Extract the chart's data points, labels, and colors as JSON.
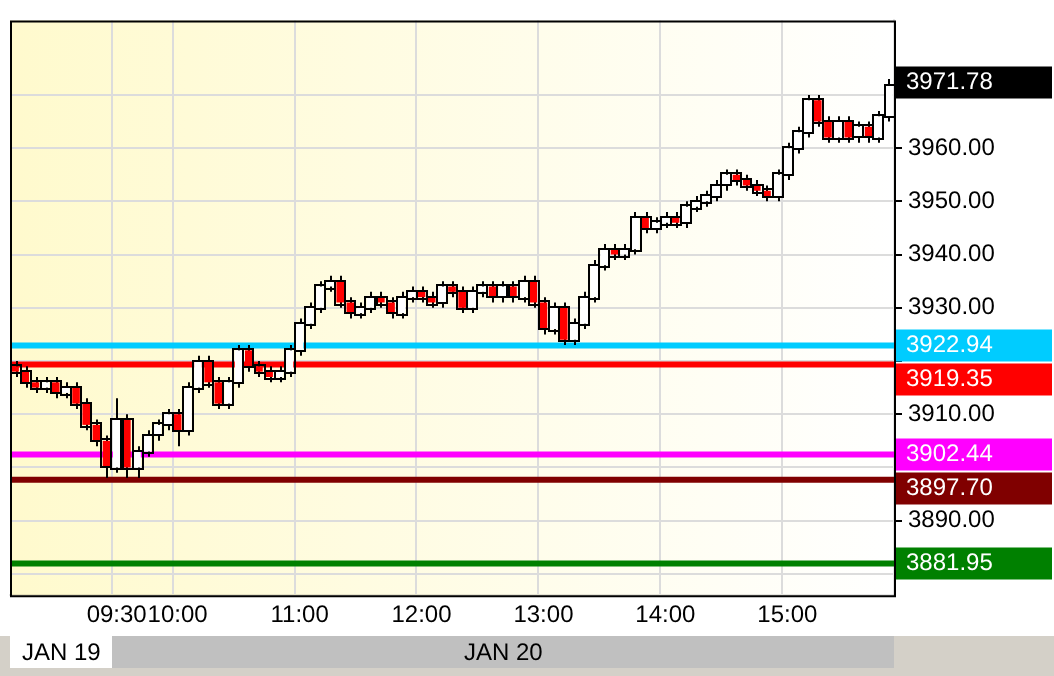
{
  "chart_data": {
    "type": "candlestick",
    "categories": [
      null,
      null,
      null,
      null,
      null,
      null,
      null,
      null,
      null,
      null,
      "09:30",
      null,
      null,
      null,
      null,
      null,
      "10:00",
      null,
      null,
      null,
      null,
      null,
      null,
      null,
      null,
      null,
      null,
      null,
      "11:00",
      null,
      null,
      null,
      null,
      null,
      null,
      null,
      null,
      null,
      null,
      null,
      "12:00",
      null,
      null,
      null,
      null,
      null,
      null,
      null,
      null,
      null,
      null,
      null,
      "13:00",
      null,
      null,
      null,
      null,
      null,
      null,
      null,
      null,
      null,
      null,
      null,
      "14:00",
      null,
      null,
      null,
      null,
      null,
      null,
      null,
      null,
      null,
      null,
      null,
      "15:00",
      null,
      null,
      null,
      null,
      null,
      null,
      null,
      null,
      null,
      null
    ],
    "ohlc": [
      [
        3919,
        3920,
        3917,
        3918
      ],
      [
        3918,
        3919,
        3915,
        3916
      ],
      [
        3916,
        3917,
        3914,
        3915
      ],
      [
        3915,
        3917,
        3914,
        3916
      ],
      [
        3916,
        3917,
        3913,
        3914
      ],
      [
        3914,
        3916,
        3913,
        3915
      ],
      [
        3915,
        3916,
        3911,
        3912
      ],
      [
        3912,
        3913,
        3907,
        3908
      ],
      [
        3908,
        3909,
        3904,
        3905
      ],
      [
        3905,
        3906,
        3898,
        3900
      ],
      [
        3900,
        3913,
        3899,
        3909
      ],
      [
        3909,
        3910,
        3898,
        3900
      ],
      [
        3900,
        3904,
        3898,
        3903
      ],
      [
        3903,
        3907,
        3902,
        3906
      ],
      [
        3906,
        3909,
        3905,
        3908
      ],
      [
        3908,
        3911,
        3907,
        3910
      ],
      [
        3910,
        3911,
        3904,
        3907
      ],
      [
        3907,
        3916,
        3906,
        3915
      ],
      [
        3915,
        3921,
        3914,
        3920
      ],
      [
        3920,
        3921,
        3915,
        3916
      ],
      [
        3916,
        3917,
        3911,
        3912
      ],
      [
        3912,
        3917,
        3911,
        3916
      ],
      [
        3916,
        3923,
        3915,
        3922
      ],
      [
        3922,
        3923,
        3918,
        3919
      ],
      [
        3919,
        3920,
        3917,
        3918
      ],
      [
        3918,
        3919,
        3916,
        3917
      ],
      [
        3917,
        3919,
        3916,
        3918
      ],
      [
        3918,
        3923,
        3917,
        3922
      ],
      [
        3922,
        3928,
        3921,
        3927
      ],
      [
        3927,
        3931,
        3926,
        3930
      ],
      [
        3930,
        3935,
        3929,
        3934
      ],
      [
        3934,
        3936,
        3933,
        3935
      ],
      [
        3935,
        3936,
        3930,
        3931
      ],
      [
        3931,
        3932,
        3928,
        3929
      ],
      [
        3929,
        3931,
        3928,
        3930
      ],
      [
        3930,
        3933,
        3929,
        3932
      ],
      [
        3932,
        3933,
        3930,
        3931
      ],
      [
        3931,
        3932,
        3928,
        3929
      ],
      [
        3929,
        3933,
        3928,
        3932
      ],
      [
        3932,
        3934,
        3931,
        3933
      ],
      [
        3933,
        3934,
        3931,
        3932
      ],
      [
        3932,
        3933,
        3930,
        3931
      ],
      [
        3931,
        3935,
        3930,
        3934
      ],
      [
        3934,
        3935,
        3932,
        3933
      ],
      [
        3933,
        3934,
        3929,
        3930
      ],
      [
        3930,
        3934,
        3929,
        3933
      ],
      [
        3933,
        3935,
        3932,
        3934
      ],
      [
        3934,
        3935,
        3931,
        3932
      ],
      [
        3932,
        3935,
        3931,
        3934
      ],
      [
        3934,
        3935,
        3931,
        3932
      ],
      [
        3932,
        3936,
        3931,
        3935
      ],
      [
        3935,
        3936,
        3930,
        3931
      ],
      [
        3931,
        3932,
        3925,
        3926
      ],
      [
        3926,
        3931,
        3925,
        3930
      ],
      [
        3930,
        3931,
        3923,
        3924
      ],
      [
        3924,
        3928,
        3923,
        3927
      ],
      [
        3927,
        3933,
        3926,
        3932
      ],
      [
        3932,
        3939,
        3931,
        3938
      ],
      [
        3938,
        3942,
        3937,
        3941
      ],
      [
        3941,
        3942,
        3939,
        3940
      ],
      [
        3940,
        3942,
        3939,
        3941
      ],
      [
        3941,
        3948,
        3940,
        3947
      ],
      [
        3947,
        3948,
        3944,
        3945
      ],
      [
        3945,
        3947,
        3944,
        3946
      ],
      [
        3946,
        3948,
        3945,
        3947
      ],
      [
        3947,
        3948,
        3945,
        3946
      ],
      [
        3946,
        3950,
        3945,
        3949
      ],
      [
        3949,
        3951,
        3948,
        3950
      ],
      [
        3950,
        3952,
        3949,
        3951
      ],
      [
        3951,
        3954,
        3950,
        3953
      ],
      [
        3953,
        3956,
        3952,
        3955
      ],
      [
        3955,
        3956,
        3953,
        3954
      ],
      [
        3954,
        3955,
        3952,
        3953
      ],
      [
        3953,
        3954,
        3951,
        3952
      ],
      [
        3952,
        3953,
        3950,
        3951
      ],
      [
        3951,
        3956,
        3950,
        3955
      ],
      [
        3955,
        3961,
        3954,
        3960
      ],
      [
        3960,
        3964,
        3959,
        3963
      ],
      [
        3963,
        3970,
        3962,
        3969
      ],
      [
        3969,
        3970,
        3964,
        3965
      ],
      [
        3965,
        3966,
        3961,
        3962
      ],
      [
        3962,
        3966,
        3961,
        3965
      ],
      [
        3965,
        3966,
        3961,
        3962
      ],
      [
        3962,
        3965,
        3961,
        3964
      ],
      [
        3964,
        3965,
        3961,
        3962
      ],
      [
        3962,
        3967,
        3961,
        3966
      ],
      [
        3966,
        3973,
        3965,
        3971.78
      ]
    ],
    "colors": [
      "#ff0000",
      "#ff0000",
      "#ff0000",
      "#ffffff",
      "#ff0000",
      "#ffffff",
      "#ff0000",
      "#ff0000",
      "#ff0000",
      "#ff0000",
      "#ffffff",
      "#ff0000",
      "#ffffff",
      "#ffffff",
      "#ffffff",
      "#ffffff",
      "#ff0000",
      "#ffffff",
      "#ffffff",
      "#ff0000",
      "#ff0000",
      "#ffffff",
      "#ffffff",
      "#ff0000",
      "#ff0000",
      "#ff0000",
      "#ffffff",
      "#ffffff",
      "#ffffff",
      "#ffffff",
      "#ffffff",
      "#ffffff",
      "#ff0000",
      "#ff0000",
      "#ffffff",
      "#ffffff",
      "#ff0000",
      "#ff0000",
      "#ffffff",
      "#ffffff",
      "#ff0000",
      "#ff0000",
      "#ffffff",
      "#ff0000",
      "#ff0000",
      "#ffffff",
      "#ffffff",
      "#ff0000",
      "#ffffff",
      "#ff0000",
      "#ffffff",
      "#ff0000",
      "#ff0000",
      "#ffffff",
      "#ff0000",
      "#ffffff",
      "#ffffff",
      "#ffffff",
      "#ffffff",
      "#ff0000",
      "#ffffff",
      "#ffffff",
      "#ff0000",
      "#ffffff",
      "#ffffff",
      "#ff0000",
      "#ffffff",
      "#ffffff",
      "#ffffff",
      "#ffffff",
      "#ffffff",
      "#ff0000",
      "#ff0000",
      "#ff0000",
      "#ff0000",
      "#ffffff",
      "#ffffff",
      "#ffffff",
      "#ffffff",
      "#ff0000",
      "#ff0000",
      "#ffffff",
      "#ff0000",
      "#ffffff",
      "#ff0000",
      "#ffffff",
      "#ffffff"
    ],
    "ylim": [
      3876,
      3984
    ],
    "yticks": [
      {
        "value": 3880,
        "label": null
      },
      {
        "value": 3890,
        "label": "3890.00"
      },
      {
        "value": 3900,
        "label": null
      },
      {
        "value": 3910,
        "label": "3910.00"
      },
      {
        "value": 3920,
        "label": null
      },
      {
        "value": 3930,
        "label": "3930.00"
      },
      {
        "value": 3940,
        "label": "3940.00"
      },
      {
        "value": 3950,
        "label": "3950.00"
      },
      {
        "value": 3960,
        "label": "3960.00"
      },
      {
        "value": 3970,
        "label": null
      }
    ],
    "ref_lines": [
      {
        "axis": "y",
        "value": 3922.94,
        "label": "3922.94",
        "color": "#00ccff"
      },
      {
        "axis": "y",
        "value": 3919.35,
        "label": "3919.35",
        "color": "#ff0000"
      },
      {
        "axis": "y",
        "value": 3902.44,
        "label": "3902.44",
        "color": "#ff00ff"
      },
      {
        "axis": "y",
        "value": 3897.7,
        "label": "3897.70",
        "color": "#800000"
      },
      {
        "axis": "y",
        "value": 3881.95,
        "label": "3881.95",
        "color": "#008000"
      }
    ],
    "annotations": [
      "3971.78",
      "JAN 19",
      "JAN 20"
    ],
    "grid": true,
    "legend": false
  }
}
